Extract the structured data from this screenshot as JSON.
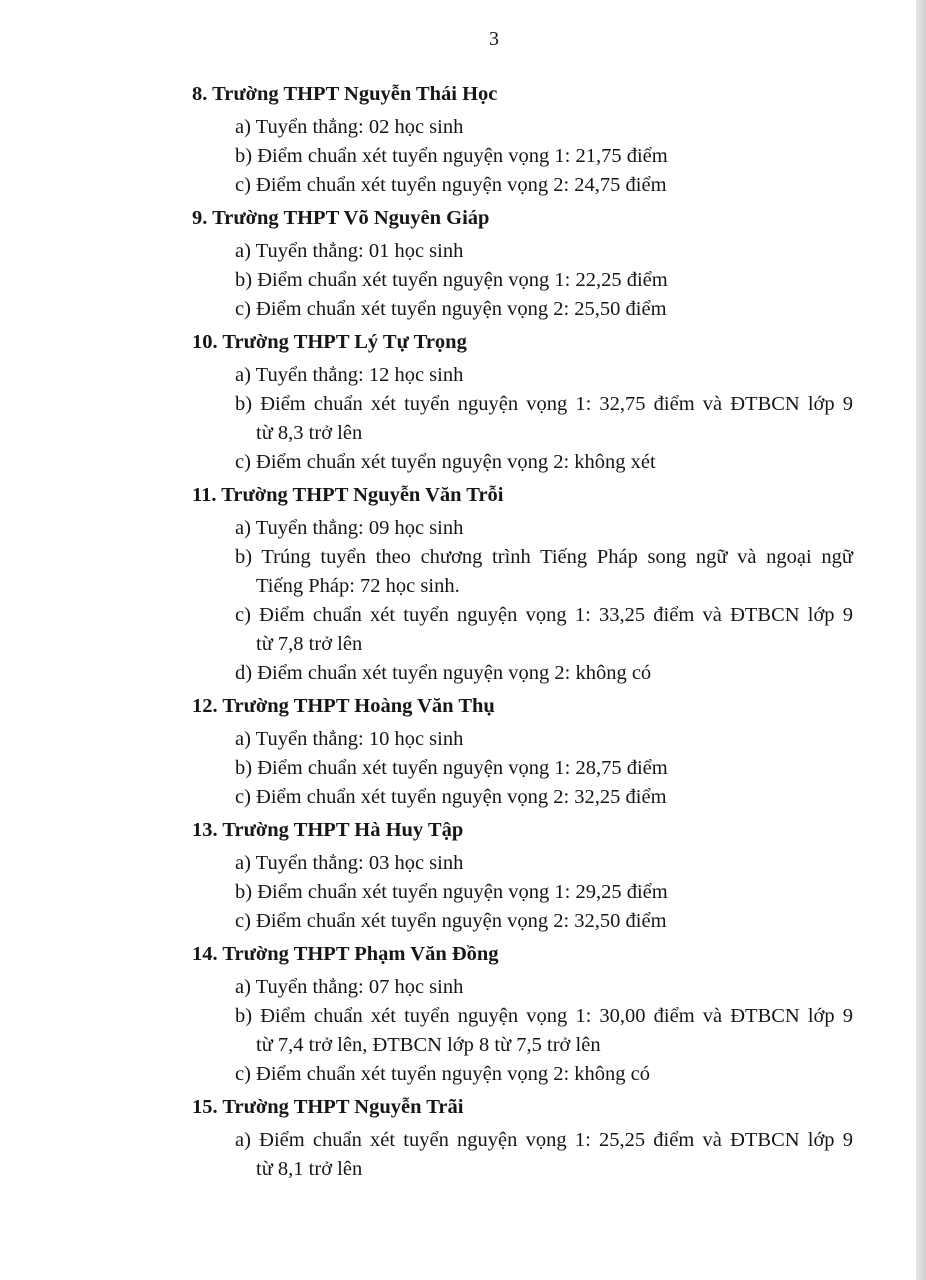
{
  "page_number": "3",
  "sections": [
    {
      "title": "8. Trường THPT Nguyễn Thái Học",
      "items": [
        {
          "lines": [
            "a) Tuyển thẳng: 02 học sinh"
          ]
        },
        {
          "lines": [
            "b) Điểm chuẩn xét tuyển nguyện vọng 1: 21,75 điểm"
          ]
        },
        {
          "lines": [
            "c) Điểm chuẩn xét tuyển nguyện vọng 2: 24,75 điểm"
          ]
        }
      ]
    },
    {
      "title": "9. Trường THPT Võ Nguyên Giáp",
      "items": [
        {
          "lines": [
            "a) Tuyển thẳng: 01 học sinh"
          ]
        },
        {
          "lines": [
            "b) Điểm chuẩn xét tuyển nguyện vọng 1: 22,25 điểm"
          ]
        },
        {
          "lines": [
            "c) Điểm chuẩn xét tuyển nguyện vọng 2: 25,50 điểm"
          ]
        }
      ]
    },
    {
      "title": "10. Trường THPT Lý Tự Trọng",
      "items": [
        {
          "lines": [
            "a) Tuyển thẳng: 12 học sinh"
          ]
        },
        {
          "lines": [
            "b) Điểm chuẩn xét tuyển nguyện vọng 1: 32,75 điểm và ĐTBCN lớp 9",
            "từ 8,3 trở lên"
          ]
        },
        {
          "lines": [
            "c) Điểm chuẩn xét tuyển nguyện vọng 2: không xét"
          ]
        }
      ]
    },
    {
      "title": "11. Trường THPT Nguyễn Văn Trỗi",
      "items": [
        {
          "lines": [
            "a) Tuyển thẳng: 09 học sinh"
          ]
        },
        {
          "lines": [
            "b) Trúng tuyển theo chương trình Tiếng Pháp song ngữ và ngoại ngữ",
            "Tiếng Pháp: 72 học sinh."
          ]
        },
        {
          "lines": [
            "c) Điểm chuẩn xét tuyển nguyện vọng 1: 33,25 điểm và ĐTBCN lớp 9",
            "từ 7,8 trở lên"
          ]
        },
        {
          "lines": [
            "d) Điểm chuẩn xét tuyển nguyện vọng 2: không có"
          ]
        }
      ]
    },
    {
      "title": "12. Trường THPT Hoàng Văn Thụ",
      "items": [
        {
          "lines": [
            "a) Tuyển thẳng: 10 học sinh"
          ]
        },
        {
          "lines": [
            "b) Điểm chuẩn xét tuyển nguyện vọng 1: 28,75 điểm"
          ]
        },
        {
          "lines": [
            "c) Điểm chuẩn xét tuyển nguyện vọng 2: 32,25 điểm"
          ]
        }
      ]
    },
    {
      "title": "13. Trường THPT Hà Huy Tập",
      "items": [
        {
          "lines": [
            "a) Tuyển thẳng: 03 học sinh"
          ]
        },
        {
          "lines": [
            "b) Điểm chuẩn xét tuyển nguyện vọng 1: 29,25 điểm"
          ]
        },
        {
          "lines": [
            "c) Điểm chuẩn xét tuyển nguyện vọng 2: 32,50 điểm"
          ]
        }
      ]
    },
    {
      "title": "14. Trường THPT Phạm Văn Đồng",
      "items": [
        {
          "lines": [
            "a) Tuyển thẳng: 07 học sinh"
          ]
        },
        {
          "lines": [
            "b) Điểm chuẩn xét tuyển nguyện vọng 1: 30,00 điểm và ĐTBCN lớp 9",
            "từ 7,4 trở lên, ĐTBCN lớp 8 từ 7,5 trở lên"
          ]
        },
        {
          "lines": [
            "c) Điểm chuẩn xét tuyển nguyện vọng 2: không có"
          ]
        }
      ]
    },
    {
      "title": "15. Trường THPT Nguyễn Trãi",
      "items": [
        {
          "lines": [
            "a) Điểm chuẩn xét tuyển nguyện vọng 1: 25,25 điểm và ĐTBCN lớp 9",
            "từ 8,1 trở lên"
          ]
        }
      ]
    }
  ]
}
